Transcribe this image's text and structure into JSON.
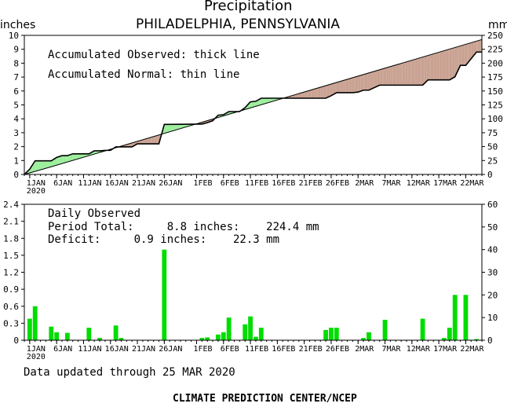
{
  "header": {
    "title": "Precipitation",
    "subtitle": "PHILADELPHIA, PENNSYLVANIA",
    "left_unit": "inches",
    "right_unit": "mm"
  },
  "top_panel": {
    "legend_observed": "Accumulated Observed: thick line",
    "legend_normal": "Accumulated Normal: thin line"
  },
  "bottom_panel": {
    "label": "Daily Observed",
    "period_total": "Period Total:     8.8 inches:    224.4 mm",
    "deficit": "Deficit:     0.9 inches:    22.3 mm"
  },
  "footer": {
    "updated": "Data updated through 25 MAR 2020",
    "credit": "CLIMATE PREDICTION CENTER/NCEP"
  },
  "colors": {
    "surplus_fill": "#99ee99",
    "deficit_fill": "#c8a090",
    "bar_fill": "#00dd00",
    "line": "#000000"
  },
  "chart_data": [
    {
      "type": "area",
      "title": "",
      "x_ticks": [
        "1JAN",
        "6JAN",
        "11JAN",
        "16JAN",
        "21JAN",
        "26JAN",
        "1FEB",
        "6FEB",
        "11FEB",
        "16FEB",
        "21FEB",
        "26FEB",
        "2MAR",
        "7MAR",
        "12MAR",
        "17MAR",
        "22MAR"
      ],
      "x_tick_days": [
        1,
        6,
        11,
        16,
        21,
        26,
        32,
        37,
        42,
        47,
        52,
        57,
        62,
        67,
        72,
        77,
        82
      ],
      "x_year_label": "2020",
      "xlim_days": [
        0,
        85
      ],
      "left_axis": {
        "ylabel": "inches",
        "ylim": [
          0,
          10
        ],
        "ticks": [
          0,
          1,
          2,
          3,
          4,
          5,
          6,
          7,
          8,
          9,
          10
        ]
      },
      "right_axis": {
        "ylabel": "mm",
        "ylim": [
          0,
          250
        ],
        "ticks": [
          0,
          25,
          50,
          75,
          100,
          125,
          150,
          175,
          200,
          225,
          250
        ]
      },
      "series": [
        {
          "name": "Accumulated Observed",
          "days": [
            0,
            1,
            2,
            3,
            5,
            6,
            7,
            8,
            9,
            10,
            11,
            12,
            13,
            14,
            15,
            16,
            17,
            20,
            21,
            22,
            25,
            26,
            27,
            33,
            34,
            35,
            36,
            37,
            38,
            40,
            41,
            42,
            43,
            44,
            53,
            56,
            57,
            58,
            61,
            62,
            63,
            64,
            66,
            67,
            74,
            75,
            79,
            80,
            81,
            82,
            84,
            85
          ],
          "values": [
            0.0,
            0.38,
            0.98,
            0.98,
            0.98,
            1.22,
            1.35,
            1.35,
            1.48,
            1.48,
            1.48,
            1.48,
            1.7,
            1.7,
            1.73,
            1.73,
            1.98,
            1.98,
            2.2,
            2.2,
            2.2,
            3.6,
            3.6,
            3.62,
            3.72,
            3.86,
            4.26,
            4.3,
            4.52,
            4.52,
            4.8,
            5.22,
            5.26,
            5.48,
            5.48,
            5.48,
            5.66,
            5.88,
            5.88,
            5.92,
            6.06,
            6.06,
            6.42,
            6.42,
            6.42,
            6.8,
            6.8,
            7.02,
            7.84,
            7.84,
            8.8,
            8.8
          ]
        },
        {
          "name": "Accumulated Normal",
          "days": [
            0,
            5,
            85
          ],
          "values": [
            0.0,
            0.55,
            9.7
          ]
        }
      ]
    },
    {
      "type": "bar",
      "title": "",
      "x_ticks": [
        "1JAN",
        "6JAN",
        "11JAN",
        "16JAN",
        "21JAN",
        "26JAN",
        "1FEB",
        "6FEB",
        "11FEB",
        "16FEB",
        "21FEB",
        "26FEB",
        "2MAR",
        "7MAR",
        "12MAR",
        "17MAR",
        "22MAR"
      ],
      "x_tick_days": [
        1,
        6,
        11,
        16,
        21,
        26,
        32,
        37,
        42,
        47,
        52,
        57,
        62,
        67,
        72,
        77,
        82
      ],
      "x_year_label": "2020",
      "xlim_days": [
        0,
        85
      ],
      "left_axis": {
        "ylabel": "inches",
        "ylim": [
          0,
          2.4
        ],
        "ticks": [
          0,
          0.3,
          0.6,
          0.9,
          1.2,
          1.5,
          1.8,
          2.1,
          2.4
        ],
        "tick_labels": [
          "0",
          "0.3",
          "0.6",
          "0.9",
          "1.2",
          "1.5",
          "1.8",
          "2.1",
          "2.4"
        ]
      },
      "right_axis": {
        "ylabel": "mm",
        "ylim": [
          0,
          60
        ],
        "ticks": [
          0,
          10,
          20,
          30,
          40,
          50,
          60
        ]
      },
      "days": [
        1,
        2,
        5,
        6,
        8,
        12,
        14,
        17,
        18,
        26,
        33,
        34,
        36,
        37,
        38,
        41,
        42,
        43,
        44,
        56,
        57,
        58,
        63,
        64,
        67,
        74,
        78,
        79,
        80,
        82,
        84
      ],
      "values": [
        0.38,
        0.6,
        0.24,
        0.14,
        0.13,
        0.22,
        0.04,
        0.26,
        0.04,
        1.6,
        0.04,
        0.05,
        0.1,
        0.14,
        0.4,
        0.28,
        0.42,
        0.06,
        0.22,
        0.18,
        0.22,
        0.22,
        0.04,
        0.14,
        0.36,
        0.38,
        0.04,
        0.22,
        0.8,
        0.8,
        0.02
      ]
    }
  ]
}
